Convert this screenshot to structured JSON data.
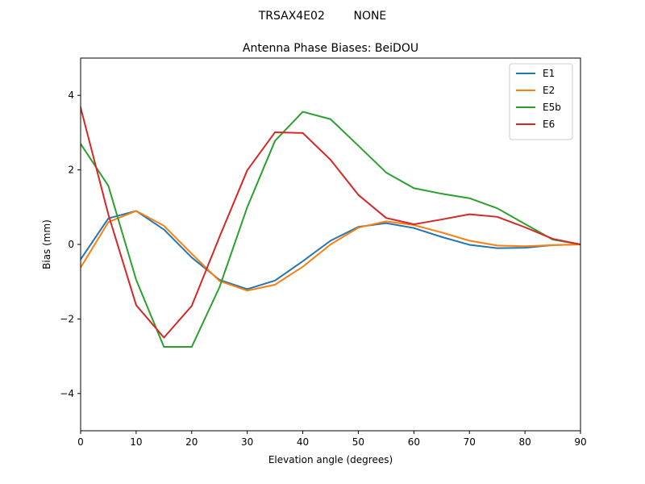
{
  "figure": {
    "suptitle": "TRSAX4E02        NONE"
  },
  "chart_data": {
    "type": "line",
    "title": "Antenna Phase Biases: BeiDOU",
    "xlabel": "Elevation angle (degrees)",
    "ylabel": "Bias (mm)",
    "xlim": [
      0,
      90
    ],
    "ylim": [
      -5,
      5
    ],
    "xticks": [
      0,
      10,
      20,
      30,
      40,
      50,
      60,
      70,
      80,
      90
    ],
    "yticks": [
      -4,
      -2,
      0,
      2,
      4
    ],
    "xtick_labels": [
      "0",
      "10",
      "20",
      "30",
      "40",
      "50",
      "60",
      "70",
      "80",
      "90"
    ],
    "ytick_labels": [
      "−4",
      "−2",
      "0",
      "2",
      "4"
    ],
    "grid": false,
    "legend_position": "top-right",
    "x": [
      0,
      5,
      10,
      15,
      20,
      25,
      30,
      35,
      40,
      45,
      50,
      55,
      60,
      65,
      70,
      75,
      80,
      85,
      90
    ],
    "series": [
      {
        "name": "E1",
        "color": "#1f77b4",
        "values": [
          -0.4,
          0.7,
          0.9,
          0.4,
          -0.35,
          -0.95,
          -1.2,
          -0.97,
          -0.45,
          0.1,
          0.47,
          0.57,
          0.44,
          0.2,
          -0.01,
          -0.1,
          -0.09,
          -0.02,
          0.0
        ]
      },
      {
        "name": "E2",
        "color": "#ff7f0e",
        "values": [
          -0.62,
          0.6,
          0.9,
          0.5,
          -0.25,
          -0.98,
          -1.24,
          -1.08,
          -0.6,
          0.0,
          0.45,
          0.62,
          0.52,
          0.32,
          0.1,
          -0.03,
          -0.05,
          -0.02,
          0.0
        ]
      },
      {
        "name": "E5b",
        "color": "#2ca02c",
        "values": [
          2.7,
          1.57,
          -0.95,
          -2.75,
          -2.75,
          -1.15,
          1.0,
          2.78,
          3.56,
          3.36,
          2.65,
          1.93,
          1.51,
          1.36,
          1.24,
          0.97,
          0.55,
          0.13,
          0.0
        ]
      },
      {
        "name": "E6",
        "color": "#d62728",
        "values": [
          3.67,
          0.8,
          -1.63,
          -2.5,
          -1.65,
          0.2,
          1.99,
          3.01,
          2.99,
          2.27,
          1.33,
          0.71,
          0.54,
          0.67,
          0.81,
          0.74,
          0.46,
          0.15,
          0.0
        ]
      }
    ]
  }
}
